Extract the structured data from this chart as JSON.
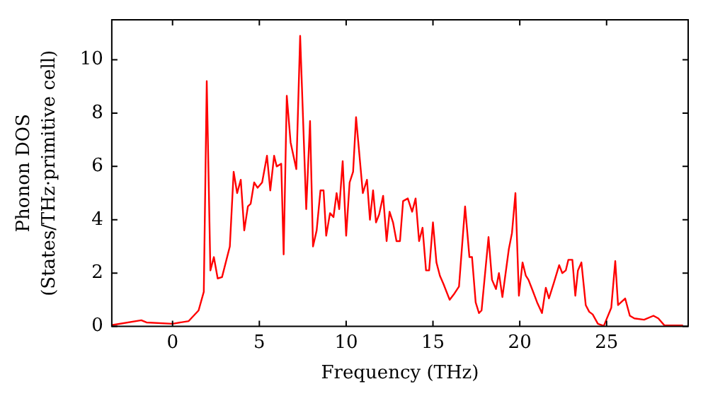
{
  "chart_data": {
    "type": "line",
    "xlabel": "Frequency (THz)",
    "ylabel": "Phonon DOS\n(States/THz·primitive cell)",
    "xlim": [
      -3.5,
      29.7
    ],
    "ylim": [
      0,
      11.5
    ],
    "xticks": [
      0,
      5,
      10,
      15,
      20,
      25
    ],
    "yticks": [
      0,
      2,
      4,
      6,
      8,
      10
    ],
    "grid": false,
    "legend": false,
    "marker": "none",
    "line_style": "solid",
    "series": [
      {
        "color": "#ff0000",
        "x": [
          -3.5,
          -1.8,
          -1.5,
          0,
          0.93,
          1.5,
          1.8,
          1.97,
          2.18,
          2.38,
          2.6,
          2.85,
          3.3,
          3.52,
          3.72,
          3.93,
          4.13,
          4.34,
          4.5,
          4.7,
          4.9,
          5.16,
          5.44,
          5.63,
          5.85,
          6.0,
          6.26,
          6.4,
          6.58,
          6.8,
          7.13,
          7.35,
          7.7,
          7.92,
          8.09,
          8.3,
          8.52,
          8.7,
          8.85,
          9.07,
          9.27,
          9.45,
          9.6,
          9.8,
          10.0,
          10.2,
          10.4,
          10.57,
          10.96,
          11.2,
          11.37,
          11.55,
          11.72,
          11.9,
          12.13,
          12.33,
          12.5,
          12.7,
          12.9,
          13.1,
          13.28,
          13.55,
          13.8,
          14.0,
          14.2,
          14.4,
          14.6,
          14.78,
          15.0,
          15.2,
          15.4,
          15.6,
          15.96,
          16.2,
          16.5,
          16.85,
          17.1,
          17.25,
          17.46,
          17.65,
          17.8,
          18.2,
          18.4,
          18.63,
          18.8,
          19.0,
          19.37,
          19.55,
          19.75,
          19.95,
          20.16,
          20.35,
          20.5,
          20.74,
          21.0,
          21.28,
          21.5,
          21.68,
          21.97,
          22.27,
          22.45,
          22.65,
          22.8,
          23.03,
          23.2,
          23.35,
          23.55,
          23.8,
          24.0,
          24.2,
          24.5,
          24.84,
          25.27,
          25.5,
          25.66,
          26.07,
          26.34,
          26.6,
          27.16,
          27.7,
          27.98,
          28.33,
          29.4
        ],
        "values": [
          0.05,
          0.23,
          0.15,
          0.1,
          0.2,
          0.6,
          1.3,
          9.2,
          2.1,
          2.6,
          1.8,
          1.85,
          3.0,
          5.8,
          5.0,
          5.5,
          3.6,
          4.5,
          4.6,
          5.4,
          5.2,
          5.4,
          6.4,
          5.1,
          6.4,
          6.0,
          6.1,
          2.7,
          8.65,
          6.9,
          5.9,
          10.9,
          4.4,
          7.7,
          3.0,
          3.6,
          5.1,
          5.1,
          3.4,
          4.25,
          4.1,
          5.0,
          4.4,
          6.2,
          3.4,
          5.4,
          5.8,
          7.85,
          5.0,
          5.5,
          4.0,
          5.1,
          3.9,
          4.2,
          4.9,
          3.2,
          4.3,
          3.9,
          3.2,
          3.2,
          4.7,
          4.8,
          4.3,
          4.8,
          3.2,
          3.7,
          2.1,
          2.1,
          3.9,
          2.4,
          1.9,
          1.6,
          1.0,
          1.2,
          1.5,
          4.5,
          2.6,
          2.6,
          0.9,
          0.5,
          0.6,
          3.35,
          1.75,
          1.4,
          2.0,
          1.1,
          2.9,
          3.5,
          5.0,
          1.15,
          2.4,
          1.9,
          1.75,
          1.35,
          0.9,
          0.5,
          1.45,
          1.05,
          1.65,
          2.3,
          2.0,
          2.1,
          2.5,
          2.5,
          1.15,
          2.1,
          2.4,
          0.8,
          0.55,
          0.45,
          0.1,
          0.02,
          0.7,
          2.45,
          0.8,
          1.05,
          0.4,
          0.3,
          0.25,
          0.4,
          0.3,
          0.04,
          0.04
        ]
      }
    ]
  }
}
